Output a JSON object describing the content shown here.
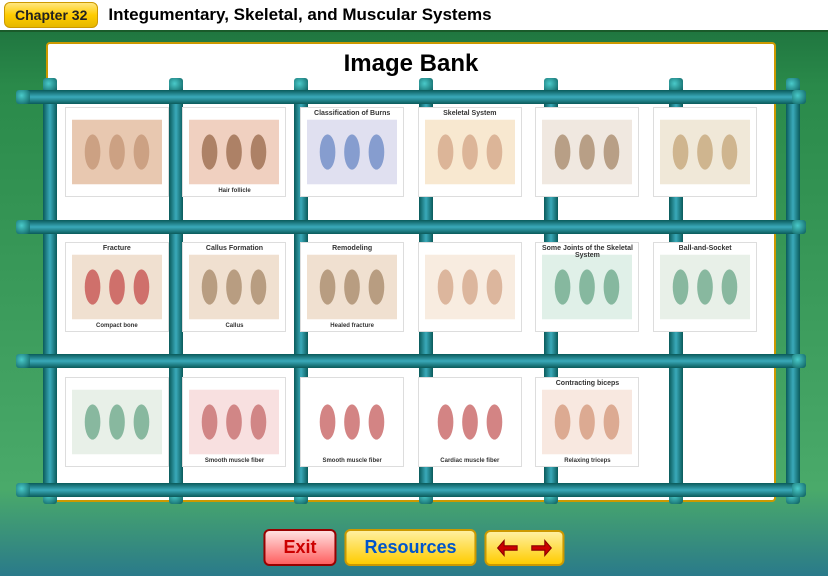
{
  "header": {
    "chapter_label": "Chapter 32",
    "chapter_title": "Integumentary, Skeletal, and Muscular Systems"
  },
  "page_title": "Image Bank",
  "colors": {
    "header_bg": "#ffffff",
    "badge_gradient": [
      "#ffe680",
      "#ffcc00",
      "#e6b800"
    ],
    "panel_bg": "#ffffff",
    "panel_border": "#cc9900",
    "grid_bar": "#2a9a9a",
    "bg_gradient": [
      "#1a6b3a",
      "#2a7a8a"
    ],
    "exit_text": "#cc0000",
    "resources_text": "#0055cc",
    "arrow_color": "#cc0000"
  },
  "grid": {
    "rows": 3,
    "cols": 6,
    "vline_positions_pct": [
      3,
      19,
      35,
      51,
      67,
      83,
      98
    ],
    "hline_positions_pct": [
      2,
      33,
      65,
      96
    ]
  },
  "thumbnails": [
    {
      "label": "",
      "top_label": "",
      "fill": "#e8c8b0",
      "accent": "#c09070",
      "desc": "skin-layers"
    },
    {
      "label": "Hair follicle",
      "top_label": "",
      "fill": "#f0d0c0",
      "accent": "#906040",
      "desc": "sebaceous-gland"
    },
    {
      "label": "",
      "top_label": "Classification of Burns",
      "fill": "#e0e0f0",
      "accent": "#6080c0",
      "desc": "burns-table"
    },
    {
      "label": "",
      "top_label": "Skeletal System",
      "fill": "#f8e8d0",
      "accent": "#d0a080",
      "desc": "skeleton"
    },
    {
      "label": "",
      "top_label": "",
      "fill": "#f0e8e0",
      "accent": "#a08060",
      "desc": "femur"
    },
    {
      "label": "",
      "top_label": "",
      "fill": "#f0e8d8",
      "accent": "#c0a070",
      "desc": "long-bone"
    },
    {
      "label": "Compact bone",
      "top_label": "Fracture",
      "fill": "#f0e0d0",
      "accent": "#c04040",
      "desc": "fracture"
    },
    {
      "label": "Callus",
      "top_label": "Callus Formation",
      "fill": "#f0e0d0",
      "accent": "#a08060",
      "desc": "callus"
    },
    {
      "label": "Healed fracture",
      "top_label": "Remodeling",
      "fill": "#f0e0d0",
      "accent": "#a08060",
      "desc": "remodeling"
    },
    {
      "label": "",
      "top_label": "",
      "fill": "#f8ece0",
      "accent": "#d0a080",
      "desc": "elbow-joint"
    },
    {
      "label": "",
      "top_label": "Some Joints of the Skeletal System",
      "fill": "#e0f0e8",
      "accent": "#60a080",
      "desc": "joints-table1"
    },
    {
      "label": "",
      "top_label": "Ball-and-Socket",
      "fill": "#e8f0e8",
      "accent": "#60a080",
      "desc": "joints-table2"
    },
    {
      "label": "",
      "top_label": "",
      "fill": "#e8f0e8",
      "accent": "#60a080",
      "desc": "joints-table3"
    },
    {
      "label": "Smooth muscle fiber",
      "top_label": "",
      "fill": "#f8e0e0",
      "accent": "#c06060",
      "desc": "muscle-types"
    },
    {
      "label": "Smooth muscle fiber",
      "top_label": "",
      "fill": "#ffffff",
      "accent": "#c05050",
      "desc": "smooth-muscle"
    },
    {
      "label": "Cardiac muscle fiber",
      "top_label": "",
      "fill": "#ffffff",
      "accent": "#c05050",
      "desc": "cardiac-muscle"
    },
    {
      "label": "Relaxing triceps",
      "top_label": "Contracting biceps",
      "fill": "#f8e8e0",
      "accent": "#d09070",
      "desc": "biceps-triceps"
    },
    {
      "label": "",
      "top_label": "",
      "fill": "#ffffff",
      "accent": "#ffffff",
      "desc": "empty"
    }
  ],
  "toolbar": {
    "exit_label": "Exit",
    "resources_label": "Resources"
  }
}
